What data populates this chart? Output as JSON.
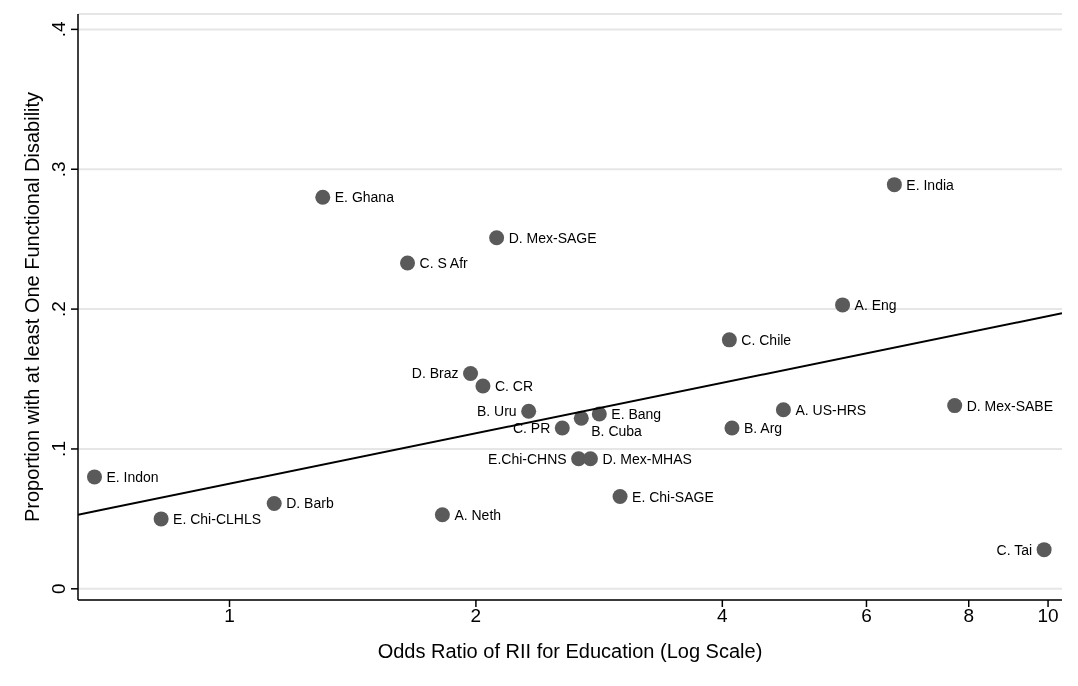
{
  "chart_data": {
    "type": "scatter",
    "xlabel": "Odds Ratio of RII for Education (Log Scale)",
    "ylabel": "Proportion with at least One Functional Disability",
    "log": "x",
    "xlim": [
      0.653,
      10.4
    ],
    "xticks": [
      1,
      2,
      4,
      6,
      8,
      10
    ],
    "ylim": [
      -0.008,
      0.411
    ],
    "yticks": [
      0,
      {
        "value": 0.1,
        "label": ".1"
      },
      {
        "value": 0.2,
        "label": ".2"
      },
      {
        "value": 0.3,
        "label": ".3"
      },
      {
        "value": 0.4,
        "label": ".4"
      }
    ],
    "grid": "y",
    "legend": false,
    "series": [
      {
        "type": "scatter",
        "color": "#5a5a5a",
        "marker": "circle",
        "x": [
          0.684,
          0.825,
          1.134,
          1.3,
          1.65,
          1.82,
          1.97,
          2.04,
          2.12,
          2.32,
          2.55,
          2.69,
          2.83,
          2.67,
          2.76,
          3.0,
          4.08,
          4.11,
          4.75,
          5.61,
          6.49,
          7.69,
          9.89
        ],
        "values": [
          0.08,
          0.05,
          0.061,
          0.28,
          0.233,
          0.053,
          0.154,
          0.145,
          0.251,
          0.127,
          0.115,
          0.122,
          0.125,
          0.093,
          0.093,
          0.066,
          0.178,
          0.115,
          0.128,
          0.203,
          0.289,
          0.131,
          0.028
        ]
      },
      {
        "type": "line",
        "color": "#000000",
        "marker": "none",
        "line_style": "solid",
        "x": [
          0.653,
          10.4
        ],
        "values": [
          0.053,
          0.197
        ]
      }
    ],
    "annotations": [
      {
        "text": "E. Indon",
        "x": 0.684,
        "y": 0.08
      },
      {
        "text": "E. Chi-CLHLS",
        "x": 0.825,
        "y": 0.05
      },
      {
        "text": "D. Barb",
        "x": 1.134,
        "y": 0.061
      },
      {
        "text": "E. Ghana",
        "x": 1.3,
        "y": 0.28
      },
      {
        "text": "C. S Afr",
        "x": 1.65,
        "y": 0.233
      },
      {
        "text": "A. Neth",
        "x": 1.82,
        "y": 0.053
      },
      {
        "text": "D. Braz",
        "x": 1.97,
        "y": 0.154
      },
      {
        "text": "C. CR",
        "x": 2.04,
        "y": 0.145
      },
      {
        "text": "D. Mex-SAGE",
        "x": 2.12,
        "y": 0.251
      },
      {
        "text": "B. Uru",
        "x": 2.32,
        "y": 0.127
      },
      {
        "text": "C. PR",
        "x": 2.55,
        "y": 0.115
      },
      {
        "text": "B. Cuba",
        "x": 2.69,
        "y": 0.122
      },
      {
        "text": "E. Bang",
        "x": 2.83,
        "y": 0.125
      },
      {
        "text": "E.Chi-CHNS",
        "x": 2.67,
        "y": 0.093
      },
      {
        "text": "D. Mex-MHAS",
        "x": 2.76,
        "y": 0.093
      },
      {
        "text": "E. Chi-SAGE",
        "x": 3.0,
        "y": 0.066
      },
      {
        "text": "C. Chile",
        "x": 4.08,
        "y": 0.178
      },
      {
        "text": "B. Arg",
        "x": 4.11,
        "y": 0.115
      },
      {
        "text": "A. US-HRS",
        "x": 4.75,
        "y": 0.128
      },
      {
        "text": "A. Eng",
        "x": 5.61,
        "y": 0.203
      },
      {
        "text": "E. India",
        "x": 6.49,
        "y": 0.289
      },
      {
        "text": "D. Mex-SABE",
        "x": 7.69,
        "y": 0.131
      },
      {
        "text": "C. Tai",
        "x": 9.89,
        "y": 0.028
      }
    ]
  }
}
